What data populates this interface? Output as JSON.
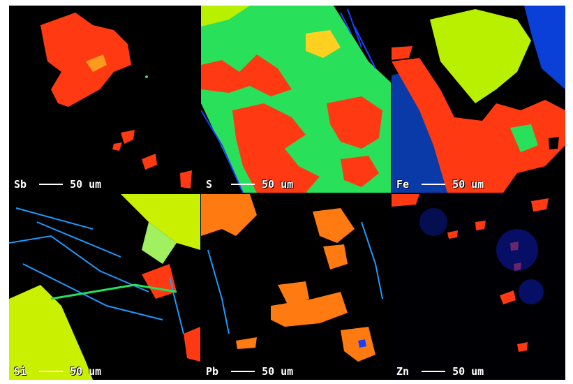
{
  "panels": [
    {
      "element": "Sb",
      "scale": "50 um"
    },
    {
      "element": "S",
      "scale": "50 um"
    },
    {
      "element": "Fe",
      "scale": "50 um"
    },
    {
      "element": "Si",
      "scale": "50 um"
    },
    {
      "element": "Pb",
      "scale": "50 um"
    },
    {
      "element": "Zn",
      "scale": "50 um"
    }
  ],
  "colors": {
    "background": "#000000",
    "high": "#ff3a12",
    "mid_high": "#ff7a10",
    "mid": "#28e05a",
    "mid_low": "#b8f000",
    "low": "#0a18a8",
    "trace": "#1a40ff",
    "scale_text": "#ffffff"
  }
}
